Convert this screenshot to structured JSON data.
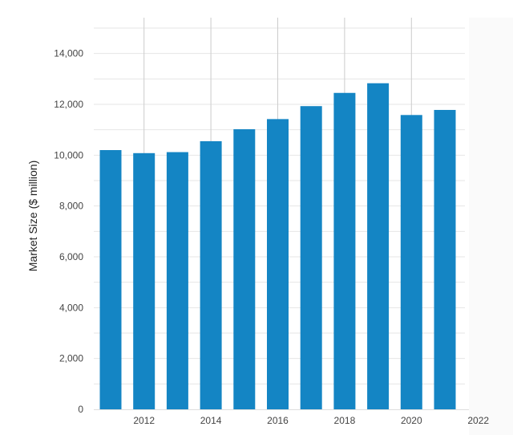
{
  "chart_data": {
    "type": "bar",
    "title": "",
    "xlabel": "",
    "ylabel": "Market Size ($ million)",
    "x": [
      2011,
      2012,
      2013,
      2014,
      2015,
      2016,
      2017,
      2018,
      2019,
      2020,
      2021
    ],
    "values": [
      10200,
      10080,
      10120,
      10550,
      11020,
      11420,
      11930,
      12450,
      12830,
      11580,
      11780
    ],
    "ylim": [
      0,
      15000
    ],
    "yticks": [
      0,
      2000,
      4000,
      6000,
      8000,
      10000,
      12000,
      14000
    ],
    "ytick_labels": [
      "0",
      "2,000",
      "4,000",
      "6,000",
      "8,000",
      "10,000",
      "12,000",
      "14,000"
    ],
    "xlim": [
      2010.5,
      2022
    ],
    "xticks": [
      2012,
      2014,
      2016,
      2018,
      2020,
      2022
    ],
    "xtick_labels": [
      "2012",
      "2014",
      "2016",
      "2018",
      "2020",
      "2022"
    ],
    "grid": true,
    "legend": "none",
    "colors": {
      "bar": "#1485c4",
      "grid": "#e6e6e6",
      "vertical_lines": "#cccccc",
      "text": "#444444",
      "plot_edge": "#f7f7f7"
    }
  }
}
